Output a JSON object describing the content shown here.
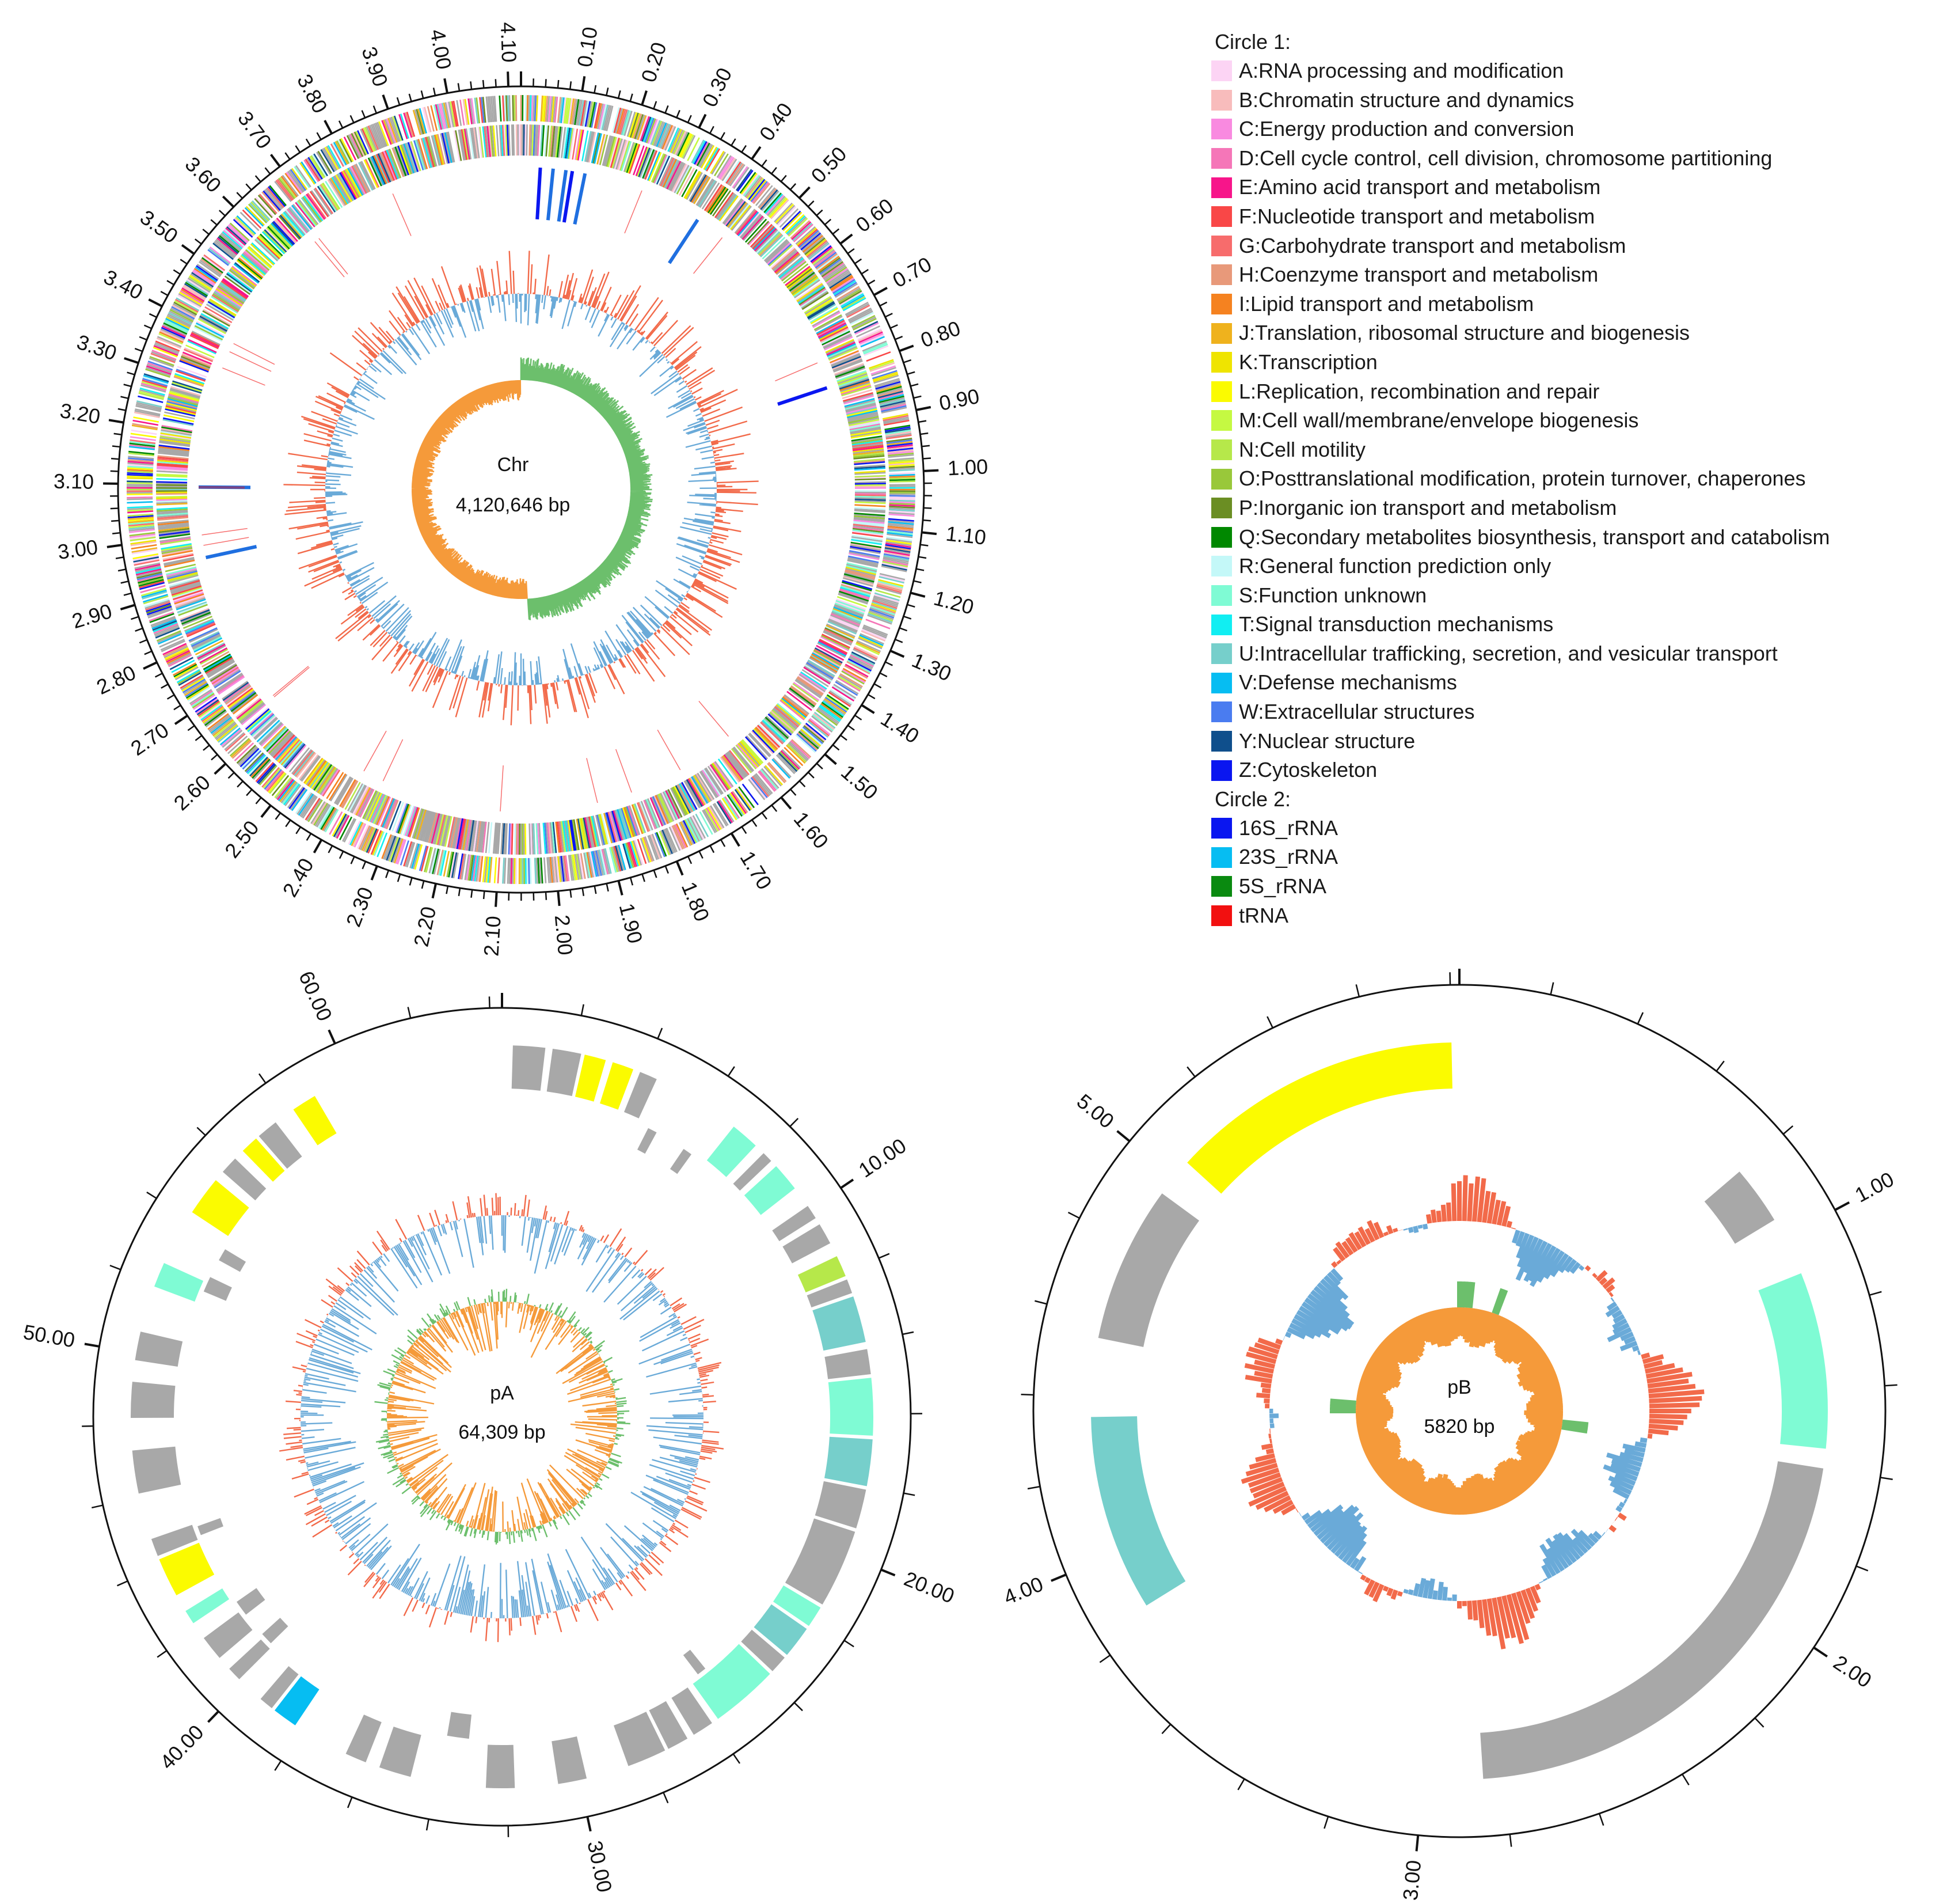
{
  "legend": {
    "circle1_title": "Circle 1:",
    "cog": [
      {
        "label": "A:RNA processing and modification",
        "color": "#fcd4f4"
      },
      {
        "label": "B:Chromatin structure and dynamics",
        "color": "#f8bcbc"
      },
      {
        "label": "C:Energy production and conversion",
        "color": "#f98ae0"
      },
      {
        "label": "D:Cell cycle control, cell division, chromosome partitioning",
        "color": "#f576b8"
      },
      {
        "label": "E:Amino acid transport and metabolism",
        "color": "#f7158a"
      },
      {
        "label": "F:Nucleotide transport and metabolism",
        "color": "#f94747"
      },
      {
        "label": "G:Carbohydrate transport and metabolism",
        "color": "#f76c6c"
      },
      {
        "label": "H:Coenzyme transport and metabolism",
        "color": "#e8997a"
      },
      {
        "label": "I:Lipid transport and metabolism",
        "color": "#f58220"
      },
      {
        "label": "J:Translation, ribosomal structure and biogenesis",
        "color": "#efb21d"
      },
      {
        "label": "K:Transcription",
        "color": "#efe400"
      },
      {
        "label": "L:Replication, recombination and repair",
        "color": "#fbfb00"
      },
      {
        "label": "M:Cell wall/membrane/envelope biogenesis",
        "color": "#c5f942"
      },
      {
        "label": "N:Cell motility",
        "color": "#b6e84a"
      },
      {
        "label": "O:Posttranslational modification, protein turnover, chaperones",
        "color": "#99c83a"
      },
      {
        "label": "P:Inorganic ion transport and metabolism",
        "color": "#6b8e23"
      },
      {
        "label": "Q:Secondary metabolites biosynthesis, transport and catabolism",
        "color": "#008800"
      },
      {
        "label": "R:General function prediction only",
        "color": "#c4f8f8"
      },
      {
        "label": "S:Function unknown",
        "color": "#7ffbd4"
      },
      {
        "label": "T:Signal transduction mechanisms",
        "color": "#11eef2"
      },
      {
        "label": "U:Intracellular trafficking, secretion, and vesicular transport",
        "color": "#76cfcb"
      },
      {
        "label": "V:Defense mechanisms",
        "color": "#06bdf2"
      },
      {
        "label": "W:Extracellular structures",
        "color": "#4a7cf0"
      },
      {
        "label": "Y:Nuclear structure",
        "color": "#0f4f8c"
      },
      {
        "label": "Z:Cytoskeleton",
        "color": "#0a16f0"
      }
    ],
    "circle2_title": "Circle 2:",
    "rna": [
      {
        "label": "16S_rRNA",
        "color": "#0a16f0"
      },
      {
        "label": "23S_rRNA",
        "color": "#06bdf2"
      },
      {
        "label": "5S_rRNA",
        "color": "#0a8a10"
      },
      {
        "label": "tRNA",
        "color": "#f21010"
      }
    ]
  },
  "maps": {
    "chr": {
      "name": "Chr",
      "size_label": "4,120,646 bp",
      "length_mb": 4.120646,
      "tick_labels": [
        "0.10",
        "0.20",
        "0.30",
        "0.40",
        "0.50",
        "0.60",
        "0.70",
        "0.80",
        "0.90",
        "1.00",
        "1.10",
        "1.20",
        "1.30",
        "1.40",
        "1.50",
        "1.60",
        "1.70",
        "1.80",
        "1.90",
        "2.00",
        "2.10",
        "2.20",
        "2.30",
        "2.40",
        "2.50",
        "2.60",
        "2.70",
        "2.80",
        "2.90",
        "3.00",
        "3.10",
        "3.20",
        "3.30",
        "3.40",
        "3.50",
        "3.60",
        "3.70",
        "3.80",
        "3.90",
        "4.00",
        "4.10"
      ]
    },
    "pA": {
      "name": "pA",
      "size_label": "64,309 bp",
      "length_kb": 64.309,
      "tick_labels": [
        "10.00",
        "20.00",
        "30.00",
        "40.00",
        "50.00",
        "60.00"
      ]
    },
    "pB": {
      "name": "pB",
      "size_label": "5820 bp",
      "length_kb": 5.82,
      "tick_labels": [
        "1.00",
        "2.00",
        "3.00",
        "4.00",
        "5.00"
      ]
    }
  },
  "track_colors": {
    "gc_content_pos": "#f26a4a",
    "gc_content_neg": "#6aaad8",
    "gc_skew_pos": "#6cbf6c",
    "gc_skew_neg": "#f59a3a",
    "no_cog": "#a8a8a8"
  }
}
